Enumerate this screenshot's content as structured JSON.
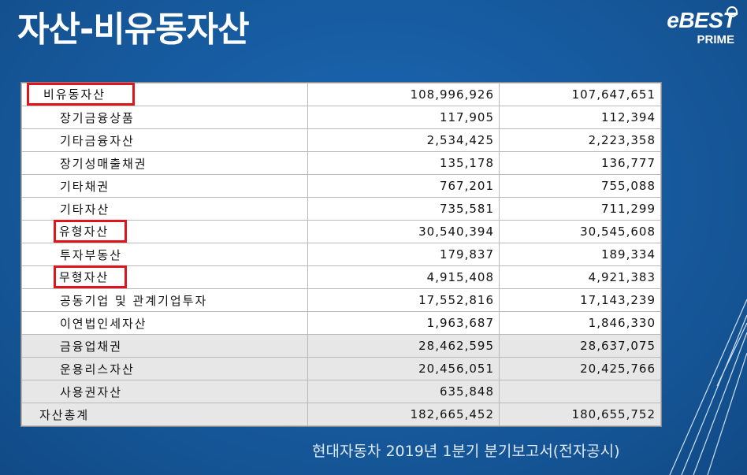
{
  "title": "자산-비유동자산",
  "logo": {
    "brand": "eBEST",
    "sub": "PRIME"
  },
  "table": {
    "rows": [
      {
        "name": "비유동자산",
        "v1": "108,996,926",
        "v2": "107,647,651",
        "level": 0,
        "highlight": true
      },
      {
        "name": "장기금융상품",
        "v1": "117,905",
        "v2": "112,394",
        "level": 1,
        "highlight": false
      },
      {
        "name": "기타금융자산",
        "v1": "2,534,425",
        "v2": "2,223,358",
        "level": 1,
        "highlight": false
      },
      {
        "name": "장기성매출채권",
        "v1": "135,178",
        "v2": "136,777",
        "level": 1,
        "highlight": false
      },
      {
        "name": "기타채권",
        "v1": "767,201",
        "v2": "755,088",
        "level": 1,
        "highlight": false
      },
      {
        "name": "기타자산",
        "v1": "735,581",
        "v2": "711,299",
        "level": 1,
        "highlight": false
      },
      {
        "name": "유형자산",
        "v1": "30,540,394",
        "v2": "30,545,608",
        "level": 1,
        "highlight": true
      },
      {
        "name": "투자부동산",
        "v1": "179,837",
        "v2": "189,334",
        "level": 1,
        "highlight": false
      },
      {
        "name": "무형자산",
        "v1": "4,915,408",
        "v2": "4,921,383",
        "level": 1,
        "highlight": true
      },
      {
        "name": "공동기업 및 관계기업투자",
        "v1": "17,552,816",
        "v2": "17,143,239",
        "level": 1,
        "highlight": false
      },
      {
        "name": "이연법인세자산",
        "v1": "1,963,687",
        "v2": "1,846,330",
        "level": 1,
        "highlight": false
      },
      {
        "name": "금융업채권",
        "v1": "28,462,595",
        "v2": "28,637,075",
        "level": 1,
        "highlight": false,
        "shade": true
      },
      {
        "name": "운용리스자산",
        "v1": "20,456,051",
        "v2": "20,425,766",
        "level": 1,
        "highlight": false,
        "shade": true
      },
      {
        "name": "사용권자산",
        "v1": "635,848",
        "v2": "",
        "level": 1,
        "highlight": false,
        "shade": true
      },
      {
        "name": "자산총계",
        "v1": "182,665,452",
        "v2": "180,655,752",
        "level": 0,
        "highlight": false,
        "shade": true
      }
    ]
  },
  "caption": "현대자동차 2019년 1분기 분기보고서(전자공시)",
  "colors": {
    "background": "#175fa8",
    "highlight": "#e0151b"
  }
}
